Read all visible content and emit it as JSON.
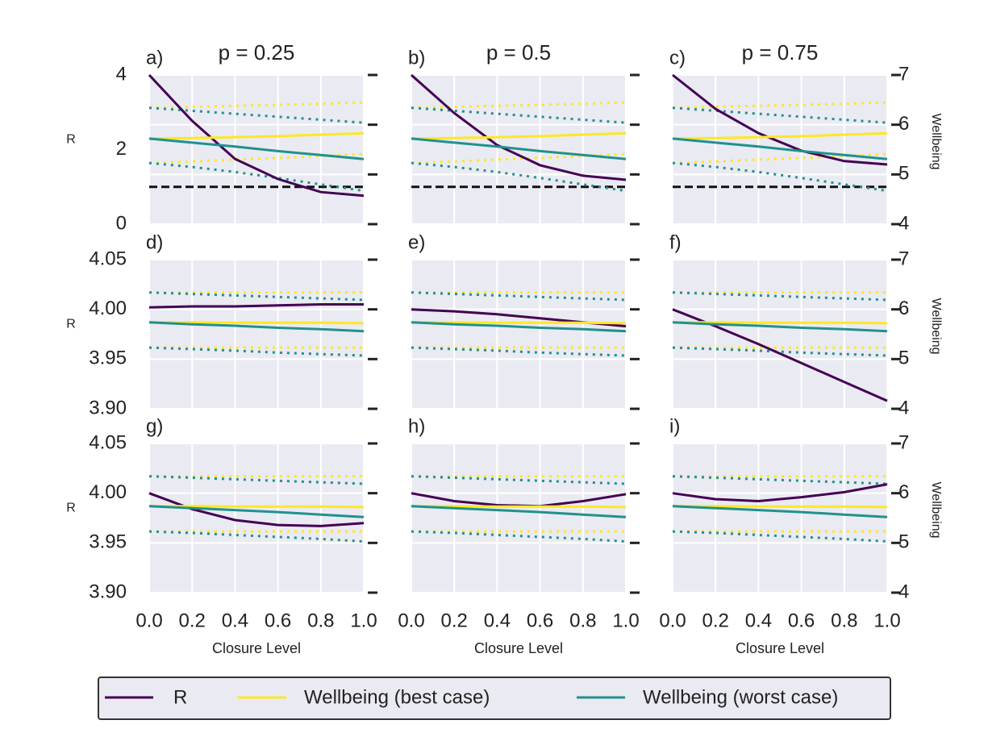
{
  "chart_data": [
    {
      "type": "line",
      "label": "a)",
      "title": "p = 0.25",
      "ylabel": "R",
      "x": [
        0,
        0.2,
        0.4,
        0.6,
        0.8,
        1
      ],
      "xticks": [
        {
          "value": 0,
          "label": "0.0"
        },
        0.2,
        0.4,
        0.6,
        0.8,
        {
          "value": 1,
          "label": "1.0"
        }
      ],
      "xticklabels": false,
      "ylim": [
        0,
        4
      ],
      "yticks": [
        0,
        2,
        4
      ],
      "yticklabels": true,
      "y2lim": [
        4,
        7
      ],
      "y2ticks": [
        4,
        5,
        6,
        7
      ],
      "y2ticklabels": false,
      "grid": true,
      "hline": 1,
      "legend": true,
      "series": [
        {
          "name": "R",
          "color": "#440154",
          "values": [
            4,
            2.77,
            1.75,
            1.21,
            0.86,
            0.76
          ]
        },
        {
          "name": "Wellbeing (best case)",
          "color": "#fde725",
          "axis": "y2",
          "values": [
            5.72,
            5.73,
            5.75,
            5.77,
            5.8,
            5.83
          ],
          "upper": [
            6.34,
            6.36,
            6.38,
            6.4,
            6.42,
            6.45
          ],
          "lower": [
            5.23,
            5.26,
            5.3,
            5.33,
            5.37,
            5.41
          ]
        },
        {
          "name": "Wellbeing (worst case)",
          "color": "#21918c",
          "axis": "y2",
          "values": [
            5.72,
            5.64,
            5.56,
            5.47,
            5.39,
            5.31
          ],
          "upper": [
            6.34,
            6.28,
            6.22,
            6.16,
            6.1,
            6.04
          ],
          "lower": [
            5.23,
            5.15,
            5.05,
            4.93,
            4.8,
            4.67
          ]
        }
      ]
    },
    {
      "type": "line",
      "label": "b)",
      "title": "p = 0.5",
      "x": [
        0,
        0.2,
        0.4,
        0.6,
        0.8,
        1
      ],
      "xticks": [
        {
          "value": 0,
          "label": "0.0"
        },
        0.2,
        0.4,
        0.6,
        0.8,
        {
          "value": 1,
          "label": "1.0"
        }
      ],
      "xticklabels": false,
      "ylim": [
        0,
        4
      ],
      "yticks": [
        0,
        2,
        4
      ],
      "yticklabels": false,
      "y2lim": [
        4,
        7
      ],
      "y2ticks": [
        4,
        5,
        6,
        7
      ],
      "y2ticklabels": false,
      "grid": true,
      "hline": 1,
      "series": [
        {
          "color": "#440154",
          "values": [
            4,
            2.98,
            2.12,
            1.58,
            1.3,
            1.19
          ]
        },
        {
          "color": "#fde725",
          "axis": "y2",
          "values": [
            5.72,
            5.73,
            5.75,
            5.77,
            5.8,
            5.83
          ],
          "upper": [
            6.34,
            6.36,
            6.38,
            6.4,
            6.42,
            6.45
          ],
          "lower": [
            5.23,
            5.26,
            5.3,
            5.33,
            5.37,
            5.41
          ]
        },
        {
          "color": "#21918c",
          "axis": "y2",
          "values": [
            5.72,
            5.64,
            5.56,
            5.47,
            5.39,
            5.31
          ],
          "upper": [
            6.34,
            6.28,
            6.22,
            6.16,
            6.1,
            6.04
          ],
          "lower": [
            5.23,
            5.15,
            5.05,
            4.93,
            4.8,
            4.67
          ]
        }
      ]
    },
    {
      "type": "line",
      "label": "c)",
      "title": "p = 0.75",
      "y2label": "Wellbeing",
      "x": [
        0,
        0.2,
        0.4,
        0.6,
        0.8,
        1
      ],
      "xticks": [
        {
          "value": 0,
          "label": "0.0"
        },
        0.2,
        0.4,
        0.6,
        0.8,
        {
          "value": 1,
          "label": "1.0"
        }
      ],
      "xticklabels": false,
      "ylim": [
        0,
        4
      ],
      "yticks": [
        0,
        2,
        4
      ],
      "yticklabels": false,
      "y2lim": [
        4,
        7
      ],
      "y2ticks": [
        4,
        5,
        6,
        7
      ],
      "y2ticklabels": true,
      "grid": true,
      "hline": 1,
      "series": [
        {
          "color": "#440154",
          "values": [
            4,
            3.09,
            2.44,
            1.97,
            1.69,
            1.6
          ]
        },
        {
          "color": "#fde725",
          "axis": "y2",
          "values": [
            5.72,
            5.73,
            5.75,
            5.77,
            5.8,
            5.83
          ],
          "upper": [
            6.34,
            6.36,
            6.38,
            6.4,
            6.42,
            6.45
          ],
          "lower": [
            5.23,
            5.26,
            5.3,
            5.33,
            5.37,
            5.41
          ]
        },
        {
          "color": "#21918c",
          "axis": "y2",
          "values": [
            5.72,
            5.64,
            5.56,
            5.47,
            5.39,
            5.31
          ],
          "upper": [
            6.34,
            6.28,
            6.22,
            6.16,
            6.1,
            6.04
          ],
          "lower": [
            5.23,
            5.15,
            5.05,
            4.93,
            4.8,
            4.67
          ]
        }
      ]
    },
    {
      "type": "line",
      "label": "d)",
      "ylabel": "R",
      "x": [
        0,
        0.2,
        0.4,
        0.6,
        0.8,
        1
      ],
      "xticks": [
        {
          "value": 0,
          "label": "0.0"
        },
        0.2,
        0.4,
        0.6,
        0.8,
        {
          "value": 1,
          "label": "1.0"
        }
      ],
      "xticklabels": false,
      "ylim": [
        3.9,
        4.05
      ],
      "yticks": [
        {
          "value": 3.9,
          "label": "3.90"
        },
        3.95,
        {
          "value": 4,
          "label": "4.00"
        },
        4.05
      ],
      "yticklabels": true,
      "y2lim": [
        4,
        7
      ],
      "y2ticks": [
        4,
        5,
        6,
        7
      ],
      "y2ticklabels": false,
      "grid": true,
      "series": [
        {
          "color": "#440154",
          "values": [
            4.002,
            4.003,
            4.003,
            4.004,
            4.005,
            4.005
          ]
        },
        {
          "color": "#fde725",
          "axis": "y2",
          "values": [
            5.74,
            5.74,
            5.73,
            5.73,
            5.73,
            5.72
          ],
          "upper": [
            6.34,
            6.34,
            6.34,
            6.34,
            6.34,
            6.34
          ],
          "lower": [
            5.23,
            5.23,
            5.23,
            5.23,
            5.23,
            5.23
          ]
        },
        {
          "color": "#21918c",
          "axis": "y2",
          "values": [
            5.74,
            5.7,
            5.67,
            5.63,
            5.6,
            5.56
          ],
          "upper": [
            6.34,
            6.31,
            6.28,
            6.25,
            6.22,
            6.19
          ],
          "lower": [
            5.23,
            5.2,
            5.17,
            5.13,
            5.1,
            5.07
          ]
        }
      ]
    },
    {
      "type": "line",
      "label": "e)",
      "x": [
        0,
        0.2,
        0.4,
        0.6,
        0.8,
        1
      ],
      "xticks": [
        {
          "value": 0,
          "label": "0.0"
        },
        0.2,
        0.4,
        0.6,
        0.8,
        {
          "value": 1,
          "label": "1.0"
        }
      ],
      "xticklabels": false,
      "ylim": [
        3.9,
        4.05
      ],
      "yticks": [
        {
          "value": 3.9,
          "label": "3.90"
        },
        3.95,
        {
          "value": 4,
          "label": "4.00"
        },
        4.05
      ],
      "yticklabels": false,
      "y2lim": [
        4,
        7
      ],
      "y2ticks": [
        4,
        5,
        6,
        7
      ],
      "y2ticklabels": false,
      "grid": true,
      "series": [
        {
          "color": "#440154",
          "values": [
            4.0,
            3.998,
            3.995,
            3.991,
            3.987,
            3.983
          ]
        },
        {
          "color": "#fde725",
          "axis": "y2",
          "values": [
            5.74,
            5.74,
            5.73,
            5.73,
            5.73,
            5.72
          ],
          "upper": [
            6.34,
            6.34,
            6.34,
            6.34,
            6.34,
            6.34
          ],
          "lower": [
            5.23,
            5.23,
            5.23,
            5.23,
            5.23,
            5.23
          ]
        },
        {
          "color": "#21918c",
          "axis": "y2",
          "values": [
            5.74,
            5.7,
            5.67,
            5.63,
            5.6,
            5.56
          ],
          "upper": [
            6.34,
            6.31,
            6.28,
            6.25,
            6.22,
            6.19
          ],
          "lower": [
            5.23,
            5.2,
            5.17,
            5.13,
            5.1,
            5.07
          ]
        }
      ]
    },
    {
      "type": "line",
      "label": "f)",
      "y2label": "Wellbeing",
      "x": [
        0,
        0.2,
        0.4,
        0.6,
        0.8,
        1
      ],
      "xticks": [
        {
          "value": 0,
          "label": "0.0"
        },
        0.2,
        0.4,
        0.6,
        0.8,
        {
          "value": 1,
          "label": "1.0"
        }
      ],
      "xticklabels": false,
      "ylim": [
        3.9,
        4.05
      ],
      "yticks": [
        {
          "value": 3.9,
          "label": "3.90"
        },
        3.95,
        {
          "value": 4,
          "label": "4.00"
        },
        4.05
      ],
      "yticklabels": false,
      "y2lim": [
        4,
        7
      ],
      "y2ticks": [
        4,
        5,
        6,
        7
      ],
      "y2ticklabels": true,
      "grid": true,
      "series": [
        {
          "color": "#440154",
          "values": [
            4.0,
            3.983,
            3.965,
            3.946,
            3.927,
            3.908
          ]
        },
        {
          "color": "#fde725",
          "axis": "y2",
          "values": [
            5.74,
            5.74,
            5.73,
            5.73,
            5.73,
            5.72
          ],
          "upper": [
            6.34,
            6.34,
            6.34,
            6.34,
            6.34,
            6.34
          ],
          "lower": [
            5.23,
            5.23,
            5.23,
            5.23,
            5.23,
            5.23
          ]
        },
        {
          "color": "#21918c",
          "axis": "y2",
          "values": [
            5.74,
            5.7,
            5.67,
            5.63,
            5.6,
            5.56
          ],
          "upper": [
            6.34,
            6.31,
            6.28,
            6.25,
            6.22,
            6.19
          ],
          "lower": [
            5.23,
            5.2,
            5.17,
            5.13,
            5.1,
            5.07
          ]
        }
      ]
    },
    {
      "type": "line",
      "label": "g)",
      "ylabel": "R",
      "xlabel": "Closure Level",
      "x": [
        0,
        0.2,
        0.4,
        0.6,
        0.8,
        1
      ],
      "xticks": [
        {
          "value": 0,
          "label": "0.0"
        },
        0.2,
        0.4,
        0.6,
        0.8,
        {
          "value": 1,
          "label": "1.0"
        }
      ],
      "xticklabels": true,
      "ylim": [
        3.9,
        4.05
      ],
      "yticks": [
        {
          "value": 3.9,
          "label": "3.90"
        },
        3.95,
        {
          "value": 4,
          "label": "4.00"
        },
        4.05
      ],
      "yticklabels": true,
      "y2lim": [
        4,
        7
      ],
      "y2ticks": [
        4,
        5,
        6,
        7
      ],
      "y2ticklabels": false,
      "grid": true,
      "series": [
        {
          "color": "#440154",
          "values": [
            4.0,
            3.984,
            3.973,
            3.968,
            3.967,
            3.97
          ]
        },
        {
          "color": "#fde725",
          "axis": "y2",
          "values": [
            5.74,
            5.74,
            5.73,
            5.73,
            5.73,
            5.72
          ],
          "upper": [
            6.34,
            6.34,
            6.34,
            6.34,
            6.34,
            6.34
          ],
          "lower": [
            5.23,
            5.23,
            5.23,
            5.23,
            5.23,
            5.23
          ]
        },
        {
          "color": "#21918c",
          "axis": "y2",
          "values": [
            5.74,
            5.7,
            5.66,
            5.62,
            5.57,
            5.52
          ],
          "upper": [
            6.34,
            6.31,
            6.28,
            6.25,
            6.22,
            6.19
          ],
          "lower": [
            5.23,
            5.2,
            5.16,
            5.12,
            5.08,
            5.03
          ]
        }
      ]
    },
    {
      "type": "line",
      "label": "h)",
      "xlabel": "Closure Level",
      "x": [
        0,
        0.2,
        0.4,
        0.6,
        0.8,
        1
      ],
      "xticks": [
        {
          "value": 0,
          "label": "0.0"
        },
        0.2,
        0.4,
        0.6,
        0.8,
        {
          "value": 1,
          "label": "1.0"
        }
      ],
      "xticklabels": true,
      "ylim": [
        3.9,
        4.05
      ],
      "yticks": [
        {
          "value": 3.9,
          "label": "3.90"
        },
        3.95,
        {
          "value": 4,
          "label": "4.00"
        },
        4.05
      ],
      "yticklabels": false,
      "y2lim": [
        4,
        7
      ],
      "y2ticks": [
        4,
        5,
        6,
        7
      ],
      "y2ticklabels": false,
      "grid": true,
      "series": [
        {
          "color": "#440154",
          "values": [
            4.0,
            3.992,
            3.988,
            3.987,
            3.992,
            3.999
          ]
        },
        {
          "color": "#fde725",
          "axis": "y2",
          "values": [
            5.74,
            5.74,
            5.73,
            5.73,
            5.73,
            5.72
          ],
          "upper": [
            6.34,
            6.34,
            6.34,
            6.34,
            6.34,
            6.34
          ],
          "lower": [
            5.23,
            5.23,
            5.23,
            5.23,
            5.23,
            5.23
          ]
        },
        {
          "color": "#21918c",
          "axis": "y2",
          "values": [
            5.74,
            5.7,
            5.66,
            5.62,
            5.57,
            5.52
          ],
          "upper": [
            6.34,
            6.31,
            6.28,
            6.25,
            6.22,
            6.19
          ],
          "lower": [
            5.23,
            5.2,
            5.16,
            5.12,
            5.08,
            5.03
          ]
        }
      ]
    },
    {
      "type": "line",
      "label": "i)",
      "xlabel": "Closure Level",
      "y2label": "Wellbeing",
      "x": [
        0,
        0.2,
        0.4,
        0.6,
        0.8,
        1
      ],
      "xticks": [
        {
          "value": 0,
          "label": "0.0"
        },
        0.2,
        0.4,
        0.6,
        0.8,
        {
          "value": 1,
          "label": "1.0"
        }
      ],
      "xticklabels": true,
      "ylim": [
        3.9,
        4.05
      ],
      "yticks": [
        {
          "value": 3.9,
          "label": "3.90"
        },
        3.95,
        {
          "value": 4,
          "label": "4.00"
        },
        4.05
      ],
      "yticklabels": false,
      "y2lim": [
        4,
        7
      ],
      "y2ticks": [
        4,
        5,
        6,
        7
      ],
      "y2ticklabels": true,
      "grid": true,
      "series": [
        {
          "color": "#440154",
          "values": [
            4.0,
            3.994,
            3.992,
            3.996,
            4.001,
            4.009
          ]
        },
        {
          "color": "#fde725",
          "axis": "y2",
          "values": [
            5.74,
            5.74,
            5.73,
            5.73,
            5.73,
            5.72
          ],
          "upper": [
            6.34,
            6.34,
            6.34,
            6.34,
            6.34,
            6.34
          ],
          "lower": [
            5.23,
            5.23,
            5.23,
            5.23,
            5.23,
            5.23
          ]
        },
        {
          "color": "#21918c",
          "axis": "y2",
          "values": [
            5.74,
            5.7,
            5.66,
            5.62,
            5.57,
            5.52
          ],
          "upper": [
            6.34,
            6.31,
            6.28,
            6.25,
            6.22,
            6.19
          ],
          "lower": [
            5.23,
            5.2,
            5.16,
            5.12,
            5.08,
            5.03
          ]
        }
      ]
    }
  ]
}
